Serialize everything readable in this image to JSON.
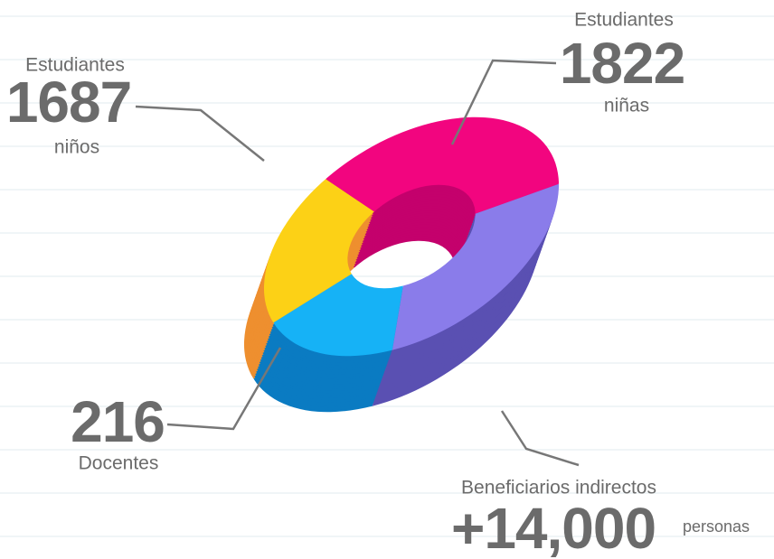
{
  "callouts": [
    {
      "label": "Estudiantes",
      "number": 1687,
      "unit": "niños"
    },
    {
      "label": "Estudiantes",
      "number": 1822,
      "unit": "niñas"
    },
    {
      "number": 216,
      "unit": "Docentes"
    },
    {
      "label": "Beneficiarios indirectos",
      "number": "+14,000",
      "unit": "personas"
    }
  ]
}
